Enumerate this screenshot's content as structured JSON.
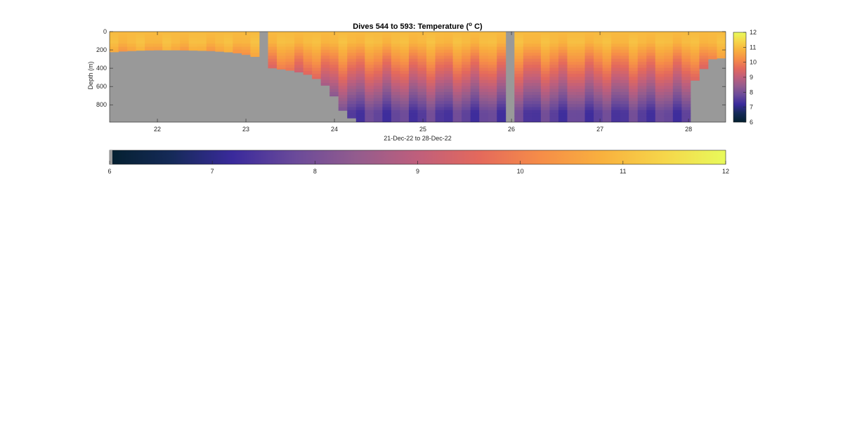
{
  "chart_data": {
    "type": "heatmap",
    "title": "Dives 544 to 593: Temperature (",
    "title_superscript": "o",
    "title_suffix": " C)",
    "xlabel": "21-Dec-22 to 28-Dec-22",
    "ylabel": "Depth (m)",
    "xlim": [
      21.46,
      28.42
    ],
    "ylim": [
      0,
      990
    ],
    "y_reversed": true,
    "xticks": [
      22,
      23,
      24,
      25,
      26,
      27,
      28
    ],
    "yticks": [
      0,
      200,
      400,
      600,
      800
    ],
    "colorscale": {
      "name": "thermal",
      "range": [
        6,
        12
      ],
      "stops": [
        "#04202f",
        "#152a58",
        "#3a2a9c",
        "#6a4a9a",
        "#935c8e",
        "#bf5f7c",
        "#e4695c",
        "#f68d48",
        "#f8b13e",
        "#f6d64a",
        "#e8fa5b"
      ]
    },
    "nodata_color": "#999999",
    "colorbar_right": {
      "ticks": [
        6,
        7,
        8,
        9,
        10,
        11,
        12
      ]
    },
    "colorbar_bottom": {
      "ticks": [
        6,
        7,
        8,
        9,
        10,
        11,
        12
      ]
    },
    "gaps": [
      [
        23.13,
        23.27
      ],
      [
        25.92,
        26.06
      ]
    ],
    "surface_temperature": 10.95,
    "deep_temperature_below_850m": 7.6,
    "seafloor_depth_profile": [
      {
        "x": 21.46,
        "depth": 226
      },
      {
        "x": 21.6,
        "depth": 215
      },
      {
        "x": 21.8,
        "depth": 206
      },
      {
        "x": 22.0,
        "depth": 202
      },
      {
        "x": 22.2,
        "depth": 202
      },
      {
        "x": 22.4,
        "depth": 205
      },
      {
        "x": 22.6,
        "depth": 210
      },
      {
        "x": 22.8,
        "depth": 223
      },
      {
        "x": 22.95,
        "depth": 240
      },
      {
        "x": 23.13,
        "depth": 280
      },
      {
        "x": 23.27,
        "depth": 395
      },
      {
        "x": 23.55,
        "depth": 430
      },
      {
        "x": 23.7,
        "depth": 470
      },
      {
        "x": 23.85,
        "depth": 540
      },
      {
        "x": 23.97,
        "depth": 665
      },
      {
        "x": 24.1,
        "depth": 870
      },
      {
        "x": 24.25,
        "depth": 990
      },
      {
        "x": 28.0,
        "depth": 990
      },
      {
        "x": 28.01,
        "depth": 615
      },
      {
        "x": 28.15,
        "depth": 430
      },
      {
        "x": 28.28,
        "depth": 290
      },
      {
        "x": 28.42,
        "depth": 290
      }
    ]
  }
}
